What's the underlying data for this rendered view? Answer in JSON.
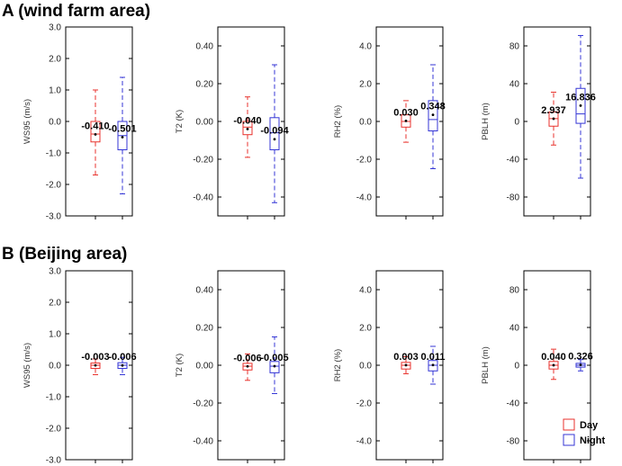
{
  "sections": [
    {
      "title": "A (wind farm area)"
    },
    {
      "title": "B (Beijing area)"
    }
  ],
  "legend": {
    "day": "Day",
    "night": "Night"
  },
  "colors": {
    "day": "#e8322c",
    "night": "#3436d6",
    "axis": "#000000"
  },
  "chart_data": [
    {
      "type": "box",
      "section": "A (wind farm area)",
      "ylabel": "WS95 (m/s)",
      "ylim": [
        -3.0,
        3.0
      ],
      "yticks": [
        -3.0,
        -2.0,
        -1.0,
        0.0,
        1.0,
        2.0,
        3.0
      ],
      "ytick_labels": [
        "-3.0",
        "-2.0",
        "-1.0",
        "0.0",
        "1.0",
        "2.0",
        "3.0"
      ],
      "series": [
        {
          "name": "Day",
          "mean_label": "-0.410",
          "mean": -0.41,
          "q1": -0.65,
          "median": -0.4,
          "q3": 0.0,
          "whisker_low": -1.7,
          "whisker_high": 1.0
        },
        {
          "name": "Night",
          "mean_label": "-0.501",
          "mean": -0.5,
          "q1": -0.9,
          "median": -0.45,
          "q3": 0.0,
          "whisker_low": -2.3,
          "whisker_high": 1.4
        }
      ]
    },
    {
      "type": "box",
      "section": "A (wind farm area)",
      "ylabel": "T2 (K)",
      "ylim": [
        -0.5,
        0.5
      ],
      "yticks": [
        -0.4,
        -0.2,
        0.0,
        0.2,
        0.4
      ],
      "ytick_labels": [
        "-0.40",
        "-0.20",
        "0.00",
        "0.20",
        "0.40"
      ],
      "series": [
        {
          "name": "Day",
          "mean_label": "-0.040",
          "mean": -0.04,
          "q1": -0.07,
          "median": -0.03,
          "q3": 0.0,
          "whisker_low": -0.19,
          "whisker_high": 0.13
        },
        {
          "name": "Night",
          "mean_label": "-0.094",
          "mean": -0.094,
          "q1": -0.15,
          "median": -0.06,
          "q3": 0.02,
          "whisker_low": -0.43,
          "whisker_high": 0.3
        }
      ]
    },
    {
      "type": "box",
      "section": "A (wind farm area)",
      "ylabel": "RH2 (%)",
      "ylim": [
        -5.0,
        5.0
      ],
      "yticks": [
        -4.0,
        -2.0,
        0.0,
        2.0,
        4.0
      ],
      "ytick_labels": [
        "-4.0",
        "-2.0",
        "0.0",
        "2.0",
        "4.0"
      ],
      "series": [
        {
          "name": "Day",
          "mean_label": "0.030",
          "mean": 0.03,
          "q1": -0.3,
          "median": 0.0,
          "q3": 0.35,
          "whisker_low": -1.1,
          "whisker_high": 1.1
        },
        {
          "name": "Night",
          "mean_label": "0.348",
          "mean": 0.35,
          "q1": -0.5,
          "median": 0.1,
          "q3": 1.1,
          "whisker_low": -2.5,
          "whisker_high": 3.0
        }
      ]
    },
    {
      "type": "box",
      "section": "A (wind farm area)",
      "ylabel": "PBLH (m)",
      "ylim": [
        -100,
        100
      ],
      "yticks": [
        -80,
        -40,
        0,
        40,
        80
      ],
      "ytick_labels": [
        "-80",
        "-40",
        "0",
        "40",
        "80"
      ],
      "series": [
        {
          "name": "Day",
          "mean_label": "2.937",
          "mean": 2.9,
          "q1": -5,
          "median": 3,
          "q3": 10,
          "whisker_low": -25,
          "whisker_high": 31
        },
        {
          "name": "Night",
          "mean_label": "16.836",
          "mean": 16.8,
          "q1": -2,
          "median": 8,
          "q3": 35,
          "whisker_low": -60,
          "whisker_high": 91
        }
      ]
    },
    {
      "type": "box",
      "section": "B (Beijing area)",
      "ylabel": "WS95 (m/s)",
      "ylim": [
        -3.0,
        3.0
      ],
      "yticks": [
        -3.0,
        -2.0,
        -1.0,
        0.0,
        1.0,
        2.0,
        3.0
      ],
      "ytick_labels": [
        "-3.0",
        "-2.0",
        "-1.0",
        "0.0",
        "1.0",
        "2.0",
        "3.0"
      ],
      "series": [
        {
          "name": "Day",
          "mean_label": "-0.003",
          "mean": -0.003,
          "q1": -0.1,
          "median": 0.0,
          "q3": 0.07,
          "whisker_low": -0.3,
          "whisker_high": 0.2
        },
        {
          "name": "Night",
          "mean_label": "-0.006",
          "mean": -0.006,
          "q1": -0.1,
          "median": 0.0,
          "q3": 0.08,
          "whisker_low": -0.3,
          "whisker_high": 0.25
        }
      ]
    },
    {
      "type": "box",
      "section": "B (Beijing area)",
      "ylabel": "T2 (K)",
      "ylim": [
        -0.5,
        0.5
      ],
      "yticks": [
        -0.4,
        -0.2,
        0.0,
        0.2,
        0.4
      ],
      "ytick_labels": [
        "-0.40",
        "-0.20",
        "0.00",
        "0.20",
        "0.40"
      ],
      "series": [
        {
          "name": "Day",
          "mean_label": "-0.006",
          "mean": -0.006,
          "q1": -0.025,
          "median": -0.005,
          "q3": 0.01,
          "whisker_low": -0.08,
          "whisker_high": 0.06
        },
        {
          "name": "Night",
          "mean_label": "-0.005",
          "mean": -0.005,
          "q1": -0.04,
          "median": -0.005,
          "q3": 0.02,
          "whisker_low": -0.15,
          "whisker_high": 0.15
        }
      ]
    },
    {
      "type": "box",
      "section": "B (Beijing area)",
      "ylabel": "RH2 (%)",
      "ylim": [
        -5.0,
        5.0
      ],
      "yticks": [
        -4.0,
        -2.0,
        0.0,
        2.0,
        4.0
      ],
      "ytick_labels": [
        "-4.0",
        "-2.0",
        "0.0",
        "2.0",
        "4.0"
      ],
      "series": [
        {
          "name": "Day",
          "mean_label": "0.003",
          "mean": 0.003,
          "q1": -0.2,
          "median": 0.0,
          "q3": 0.15,
          "whisker_low": -0.45,
          "whisker_high": 0.45
        },
        {
          "name": "Night",
          "mean_label": "0.011",
          "mean": 0.011,
          "q1": -0.3,
          "median": 0.0,
          "q3": 0.25,
          "whisker_low": -1.0,
          "whisker_high": 1.0
        }
      ]
    },
    {
      "type": "box",
      "section": "B (Beijing area)",
      "ylabel": "PBLH (m)",
      "ylim": [
        -100,
        100
      ],
      "yticks": [
        -80,
        -40,
        0,
        40,
        80
      ],
      "ytick_labels": [
        "-80",
        "-40",
        "0",
        "40",
        "80"
      ],
      "series": [
        {
          "name": "Day",
          "mean_label": "0.040",
          "mean": 0.04,
          "q1": -4,
          "median": 0,
          "q3": 4,
          "whisker_low": -15,
          "whisker_high": 17
        },
        {
          "name": "Night",
          "mean_label": "0.326",
          "mean": 0.33,
          "q1": -2,
          "median": 0,
          "q3": 2,
          "whisker_low": -6,
          "whisker_high": 6
        }
      ]
    }
  ]
}
